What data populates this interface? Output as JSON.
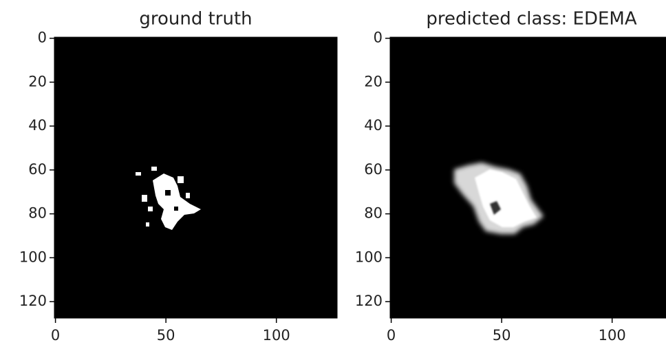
{
  "chart_data": [
    {
      "type": "image",
      "title": "ground truth",
      "xlim": [
        -0.5,
        127.5
      ],
      "ylim": [
        127.5,
        -0.5
      ],
      "xticks": [
        0,
        50,
        100
      ],
      "yticks": [
        0,
        20,
        40,
        60,
        80,
        100,
        120
      ]
    },
    {
      "type": "image",
      "title": "predicted class: EDEMA",
      "xlim": [
        -0.5,
        127.5
      ],
      "ylim": [
        127.5,
        -0.5
      ],
      "xticks": [
        0,
        50,
        100
      ],
      "yticks": [
        0,
        20,
        40,
        60,
        80,
        100,
        120
      ]
    }
  ]
}
